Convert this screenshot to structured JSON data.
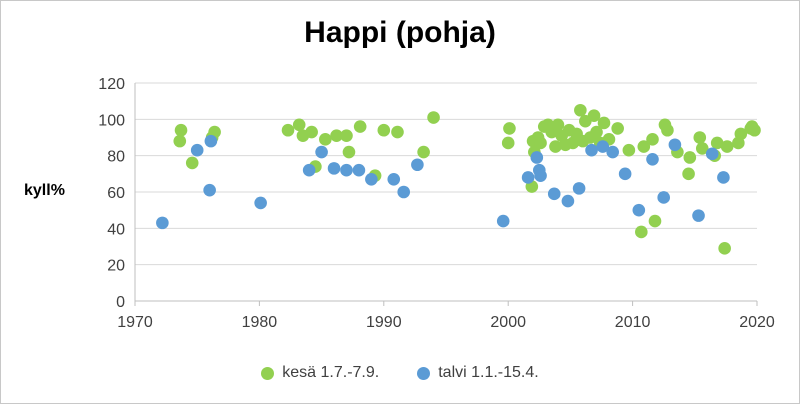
{
  "chart_data": {
    "type": "scatter",
    "title": "Happi (pohja)",
    "xlabel": "",
    "ylabel": "kyll%",
    "xlim": [
      1970,
      2020
    ],
    "ylim": [
      0,
      120
    ],
    "xticks": [
      1970,
      1980,
      1990,
      2000,
      2010,
      2020
    ],
    "yticks": [
      0,
      20,
      40,
      60,
      80,
      100,
      120
    ],
    "grid": "horizontal",
    "legend_position": "bottom",
    "series": [
      {
        "name": "kesä 1.7.-7.9.",
        "color": "#92d050",
        "points": [
          [
            1973.6,
            88
          ],
          [
            1973.7,
            94
          ],
          [
            1974.6,
            76
          ],
          [
            1976.2,
            90
          ],
          [
            1976.4,
            93
          ],
          [
            1982.3,
            94
          ],
          [
            1983.2,
            97
          ],
          [
            1983.5,
            91
          ],
          [
            1984.2,
            93
          ],
          [
            1984.5,
            74
          ],
          [
            1985.3,
            89
          ],
          [
            1986.2,
            91
          ],
          [
            1987.0,
            91
          ],
          [
            1987.2,
            82
          ],
          [
            1988.1,
            96
          ],
          [
            1989.3,
            69
          ],
          [
            1990.0,
            94
          ],
          [
            1991.1,
            93
          ],
          [
            1993.2,
            82
          ],
          [
            1994.0,
            101
          ],
          [
            2000.0,
            87
          ],
          [
            2000.1,
            95
          ],
          [
            2001.9,
            63
          ],
          [
            2002.0,
            88
          ],
          [
            2002.1,
            82
          ],
          [
            2002.4,
            90
          ],
          [
            2002.6,
            87
          ],
          [
            2002.9,
            96
          ],
          [
            2003.2,
            97
          ],
          [
            2003.5,
            93
          ],
          [
            2003.8,
            85
          ],
          [
            2004.0,
            97
          ],
          [
            2004.3,
            91
          ],
          [
            2004.6,
            86
          ],
          [
            2004.9,
            94
          ],
          [
            2005.2,
            87
          ],
          [
            2005.5,
            92
          ],
          [
            2005.8,
            105
          ],
          [
            2006.0,
            88
          ],
          [
            2006.2,
            99
          ],
          [
            2006.6,
            90
          ],
          [
            2006.9,
            102
          ],
          [
            2007.1,
            93
          ],
          [
            2007.4,
            87
          ],
          [
            2007.7,
            98
          ],
          [
            2008.1,
            89
          ],
          [
            2008.8,
            95
          ],
          [
            2009.7,
            83
          ],
          [
            2010.7,
            38
          ],
          [
            2010.9,
            85
          ],
          [
            2011.6,
            89
          ],
          [
            2011.8,
            44
          ],
          [
            2012.6,
            97
          ],
          [
            2012.8,
            94
          ],
          [
            2013.6,
            82
          ],
          [
            2014.5,
            70
          ],
          [
            2014.6,
            79
          ],
          [
            2015.4,
            90
          ],
          [
            2015.6,
            84
          ],
          [
            2016.6,
            80
          ],
          [
            2016.8,
            87
          ],
          [
            2017.4,
            29
          ],
          [
            2017.6,
            85
          ],
          [
            2018.5,
            87
          ],
          [
            2018.7,
            92
          ],
          [
            2019.5,
            95
          ],
          [
            2019.6,
            96
          ],
          [
            2019.8,
            94
          ]
        ]
      },
      {
        "name": "talvi 1.1.-15.4.",
        "color": "#5b9bd5",
        "points": [
          [
            1972.2,
            43
          ],
          [
            1975.0,
            83
          ],
          [
            1976.0,
            61
          ],
          [
            1976.1,
            88
          ],
          [
            1980.1,
            54
          ],
          [
            1984.0,
            72
          ],
          [
            1985.0,
            82
          ],
          [
            1986.0,
            73
          ],
          [
            1987.0,
            72
          ],
          [
            1988.0,
            72
          ],
          [
            1989.0,
            67
          ],
          [
            1990.8,
            67
          ],
          [
            1991.6,
            60
          ],
          [
            1992.7,
            75
          ],
          [
            1999.6,
            44
          ],
          [
            2001.6,
            68
          ],
          [
            2002.3,
            79
          ],
          [
            2002.5,
            72
          ],
          [
            2002.6,
            69
          ],
          [
            2003.7,
            59
          ],
          [
            2004.8,
            55
          ],
          [
            2005.7,
            62
          ],
          [
            2006.7,
            83
          ],
          [
            2007.6,
            85
          ],
          [
            2008.4,
            82
          ],
          [
            2009.4,
            70
          ],
          [
            2010.5,
            50
          ],
          [
            2011.6,
            78
          ],
          [
            2012.5,
            57
          ],
          [
            2013.4,
            86
          ],
          [
            2015.3,
            47
          ],
          [
            2016.4,
            81
          ],
          [
            2017.3,
            68
          ]
        ]
      }
    ]
  }
}
